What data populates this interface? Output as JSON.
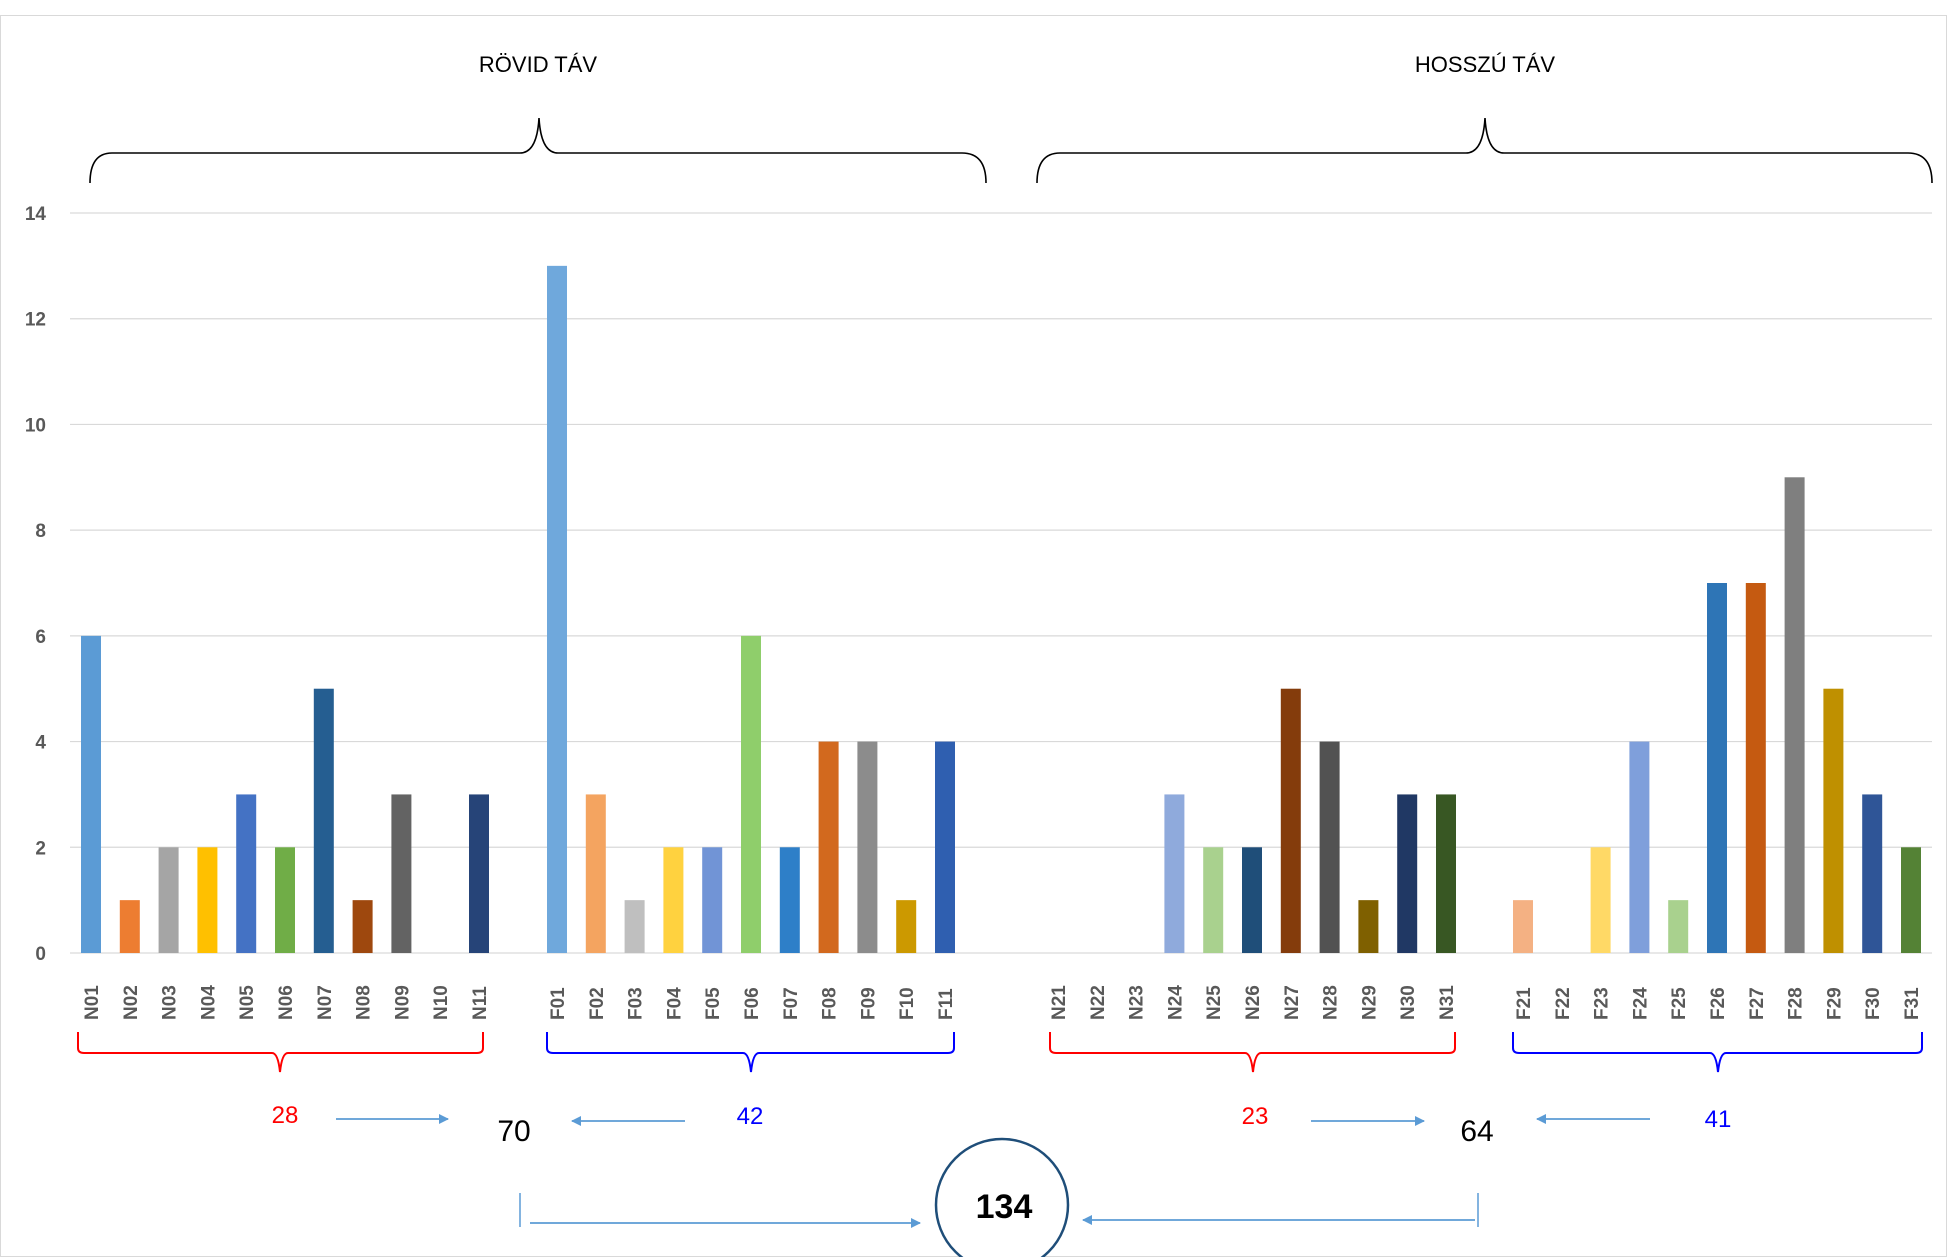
{
  "chart_data": {
    "type": "bar",
    "section_titles": [
      "RÖVID TÁV",
      "HOSSZÚ TÁV"
    ],
    "ylim": [
      0,
      14
    ],
    "yticks": [
      "0",
      "2",
      "4",
      "6",
      "8",
      "10",
      "12",
      "14"
    ],
    "groups": [
      {
        "categories": [
          "N01",
          "N02",
          "N03",
          "N04",
          "N05",
          "N06",
          "N07",
          "N08",
          "N09",
          "N10",
          "N11"
        ],
        "values": [
          6,
          1,
          2,
          2,
          3,
          2,
          5,
          1,
          3,
          0,
          3
        ],
        "colors": [
          "#5b9bd5",
          "#ed7d31",
          "#a5a5a5",
          "#ffc000",
          "#4472c4",
          "#70ad47",
          "#255e91",
          "#9e480e",
          "#636363",
          "#997300",
          "#264478"
        ],
        "total": "28",
        "total_color": "#ff0000"
      },
      {
        "categories": [
          "F01",
          "F02",
          "F03",
          "F04",
          "F05",
          "F06",
          "F07",
          "F08",
          "F09",
          "F10",
          "F11"
        ],
        "values": [
          13,
          3,
          1,
          2,
          2,
          6,
          2,
          4,
          4,
          1,
          4
        ],
        "colors": [
          "#6fa8dc",
          "#f4a460",
          "#bfbfbf",
          "#ffd23f",
          "#7194d6",
          "#8fce6b",
          "#2e7fc8",
          "#d2691e",
          "#8c8c8c",
          "#cc9900",
          "#2f5fb0"
        ],
        "total": "42",
        "total_color": "#0000ff"
      },
      {
        "categories": [
          "N21",
          "N22",
          "N23",
          "N24",
          "N25",
          "N26",
          "N27",
          "N28",
          "N29",
          "N30",
          "N31"
        ],
        "values": [
          0,
          0,
          0,
          3,
          2,
          2,
          5,
          4,
          1,
          3,
          3
        ],
        "colors": [
          "#9dc3e6",
          "#f8cbad",
          "#d9d9d9",
          "#8faadc",
          "#a9d18e",
          "#1f4e79",
          "#843c0c",
          "#525252",
          "#7f6000",
          "#203864",
          "#385723"
        ],
        "total": "23",
        "total_color": "#ff0000"
      },
      {
        "categories": [
          "F21",
          "F22",
          "F23",
          "F24",
          "F25",
          "F26",
          "F27",
          "F28",
          "F29",
          "F30",
          "F31"
        ],
        "values": [
          1,
          0,
          2,
          4,
          1,
          7,
          7,
          9,
          5,
          3,
          2
        ],
        "colors": [
          "#f4b183",
          "#d0d0d0",
          "#ffd966",
          "#7f9fdb",
          "#a9d18e",
          "#2e75b6",
          "#c55a11",
          "#7f7f7f",
          "#bf9000",
          "#2f5597",
          "#548235"
        ],
        "total": "41",
        "total_color": "#0000ff"
      }
    ],
    "section_totals": [
      "70",
      "64"
    ],
    "grand_total": "134",
    "arrow_color": "#5b9bd5",
    "gridline_color": "#d9d9d9"
  }
}
